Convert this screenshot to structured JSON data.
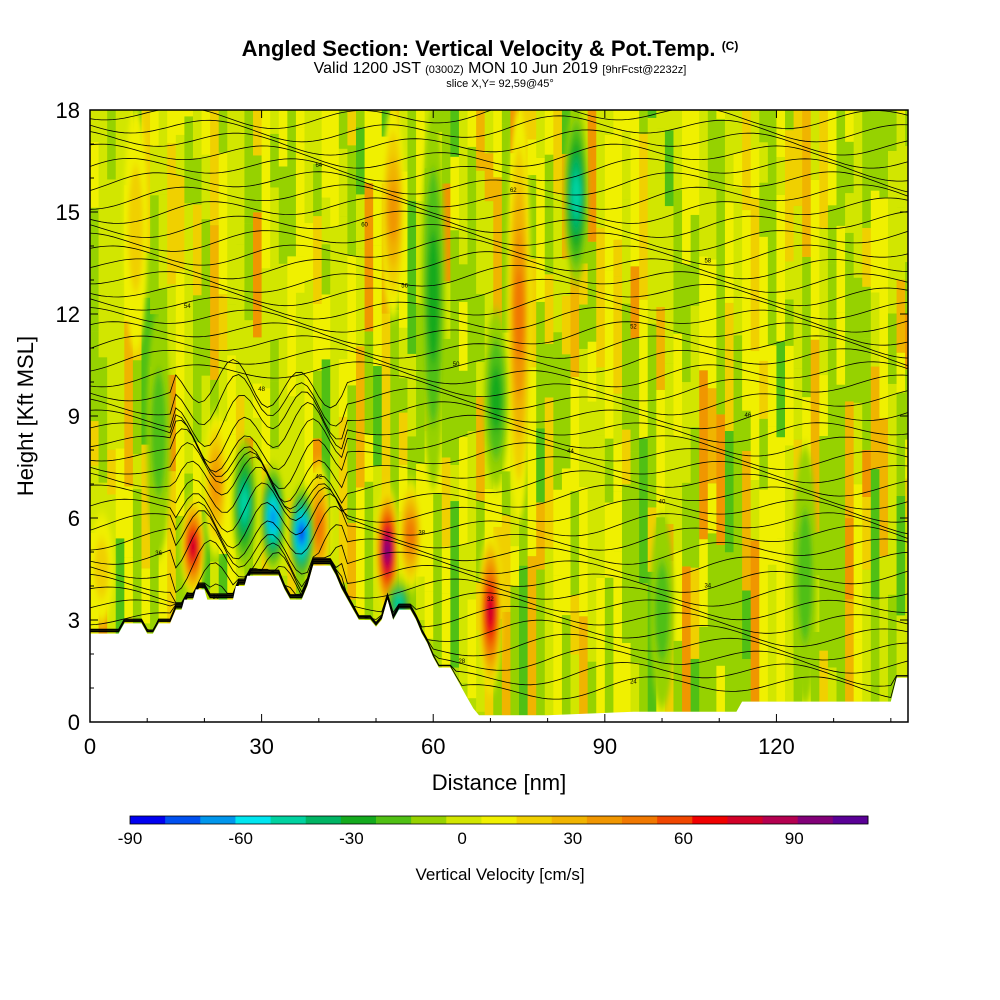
{
  "header": {
    "title": "Angled Section: Vertical Velocity & Pot.Temp.",
    "title_units": "(C)",
    "subtitle_valid": "Valid 1200 JST",
    "subtitle_utc": "(0300Z)",
    "subtitle_date": "MON 10 Jun 2019",
    "subtitle_fcst": "[9hrFcst@2232z]",
    "slice": "slice X,Y= 92,59@45°"
  },
  "colorbar": {
    "label": "Vertical Velocity [cm/s]",
    "ticks": [
      "-90",
      "-60",
      "-30",
      "0",
      "30",
      "60",
      "90"
    ],
    "colors": [
      "#0000f0",
      "#0050f0",
      "#0096ec",
      "#00e6f0",
      "#00d2a0",
      "#00b464",
      "#14aa1e",
      "#50c014",
      "#96d200",
      "#d2e600",
      "#f0f000",
      "#f0d000",
      "#f0b400",
      "#f09600",
      "#f07800",
      "#f04600",
      "#f00000",
      "#d20028",
      "#b40050",
      "#820078",
      "#5a0096"
    ]
  },
  "chart_data": {
    "type": "heatmap",
    "title": "Angled Section: Vertical Velocity & Pot.Temp.",
    "xlabel": "Distance [nm]",
    "ylabel": "Height [Kft MSL]",
    "xlim": [
      0,
      143
    ],
    "ylim": [
      0,
      18
    ],
    "xticks": [
      0,
      30,
      60,
      90,
      120
    ],
    "yticks": [
      0,
      3,
      6,
      9,
      12,
      15,
      18
    ],
    "colorbar_range": [
      -90,
      110
    ],
    "terrain": [
      [
        0,
        2.6
      ],
      [
        5,
        2.6
      ],
      [
        6,
        2.9
      ],
      [
        9,
        2.9
      ],
      [
        10,
        2.6
      ],
      [
        11,
        2.6
      ],
      [
        12,
        2.9
      ],
      [
        14,
        2.9
      ],
      [
        15,
        3.3
      ],
      [
        16,
        3.3
      ],
      [
        16.5,
        3.6
      ],
      [
        18,
        3.6
      ],
      [
        18.5,
        3.9
      ],
      [
        20,
        3.9
      ],
      [
        20.5,
        3.6
      ],
      [
        25,
        3.6
      ],
      [
        25.5,
        4.0
      ],
      [
        27,
        4.0
      ],
      [
        27.5,
        4.3
      ],
      [
        33,
        4.3
      ],
      [
        34,
        3.9
      ],
      [
        35,
        3.6
      ],
      [
        37,
        3.6
      ],
      [
        38,
        4.0
      ],
      [
        39,
        4.6
      ],
      [
        42,
        4.6
      ],
      [
        43,
        4.3
      ],
      [
        44,
        3.9
      ],
      [
        45,
        3.6
      ],
      [
        46,
        3.3
      ],
      [
        47,
        3.0
      ],
      [
        49,
        3.0
      ],
      [
        50,
        2.8
      ],
      [
        51,
        3.0
      ],
      [
        52,
        3.6
      ],
      [
        53,
        3.0
      ],
      [
        54,
        3.3
      ],
      [
        56,
        3.3
      ],
      [
        57,
        3.0
      ],
      [
        58,
        2.6
      ],
      [
        59,
        2.3
      ],
      [
        60,
        1.9
      ],
      [
        61,
        1.6
      ],
      [
        63,
        1.6
      ],
      [
        64,
        1.3
      ],
      [
        65,
        1.0
      ],
      [
        66,
        0.7
      ],
      [
        67,
        0.4
      ],
      [
        68,
        0.2
      ],
      [
        72,
        0.2
      ],
      [
        80,
        0.2
      ],
      [
        95,
        0.3
      ],
      [
        105,
        0.3
      ],
      [
        113,
        0.3
      ],
      [
        114,
        0.6
      ],
      [
        140,
        0.6
      ],
      [
        141,
        1.3
      ],
      [
        143,
        1.3
      ]
    ],
    "theta_contours_C": [
      24,
      25,
      26,
      27,
      28,
      29,
      30,
      31,
      32,
      33,
      34,
      35,
      36,
      37,
      38,
      39,
      40,
      41,
      42,
      43,
      44,
      45,
      46,
      47,
      48,
      49,
      50,
      51,
      52,
      53,
      54,
      55,
      56,
      57,
      58,
      59,
      60,
      61,
      62,
      63,
      64,
      65,
      66
    ],
    "contour_labels": [
      "24",
      "28",
      "30",
      "32",
      "34",
      "36",
      "38",
      "40",
      "42",
      "44",
      "46",
      "48",
      "50",
      "52",
      "54",
      "56",
      "58",
      "60",
      "62",
      "64"
    ],
    "updraft_cores": [
      {
        "x": 18,
        "base": 3.8,
        "top": 6.5,
        "w": 80
      },
      {
        "x": 52,
        "base": 3.3,
        "top": 6.8,
        "w": 95
      },
      {
        "x": 70,
        "base": 1.0,
        "top": 5.5,
        "w": 75
      },
      {
        "x": 75,
        "base": 6.0,
        "top": 18.0,
        "w": 50
      },
      {
        "x": 22,
        "base": 5.0,
        "top": 9.0,
        "w": 40
      },
      {
        "x": 40,
        "base": 4.0,
        "top": 7.5,
        "w": 45
      },
      {
        "x": 56,
        "base": 4.0,
        "top": 7.0,
        "w": 50
      },
      {
        "x": 53,
        "base": 12.0,
        "top": 18.0,
        "w": 35
      },
      {
        "x": 8,
        "base": 11.0,
        "top": 18.0,
        "w": 20
      },
      {
        "x": 2,
        "base": 3.0,
        "top": 6.0,
        "w": 20
      }
    ],
    "downdraft_cores": [
      {
        "x": 37,
        "base": 4.3,
        "top": 6.8,
        "w": -75
      },
      {
        "x": 32,
        "base": 4.6,
        "top": 7.4,
        "w": -65
      },
      {
        "x": 27,
        "base": 4.6,
        "top": 8.2,
        "w": -50
      },
      {
        "x": 85,
        "base": 13.0,
        "top": 18.0,
        "w": -45
      },
      {
        "x": 54,
        "base": 3.0,
        "top": 4.0,
        "w": -45
      },
      {
        "x": 60,
        "base": 7.0,
        "top": 18.0,
        "w": -30
      },
      {
        "x": 71,
        "base": 7.0,
        "top": 12.0,
        "w": -25
      },
      {
        "x": 12,
        "base": 5.0,
        "top": 12.0,
        "w": -20
      },
      {
        "x": 100,
        "base": 0.5,
        "top": 6.0,
        "w": -15
      },
      {
        "x": 125,
        "base": 0.6,
        "top": 8.0,
        "w": -15
      }
    ]
  }
}
